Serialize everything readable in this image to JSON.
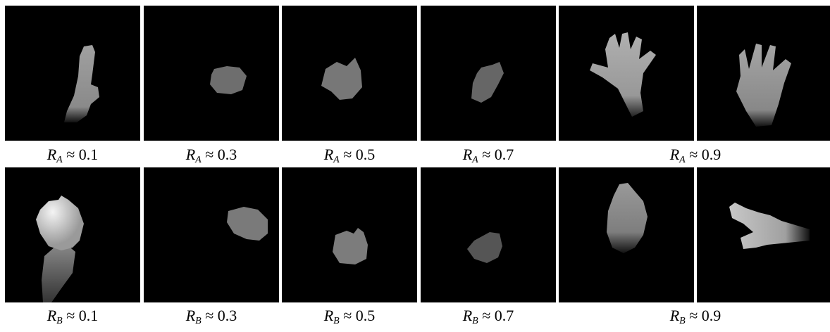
{
  "figure": {
    "rows": [
      {
        "key": "A",
        "panels": [
          {
            "id": "a1",
            "shape": "finger-up",
            "brightness": "#9a9a9a"
          },
          {
            "id": "a2",
            "shape": "blob-small",
            "brightness": "#6e6e6e"
          },
          {
            "id": "a3",
            "shape": "blob-medium",
            "brightness": "#777777"
          },
          {
            "id": "a4",
            "shape": "blob-tilted",
            "brightness": "#6a6a6a"
          },
          {
            "id": "a5",
            "shape": "open-hand",
            "brightness": "#a5a5a5"
          },
          {
            "id": "a6",
            "shape": "open-hand-2",
            "brightness": "#959595"
          }
        ],
        "captions": [
          {
            "var": "R",
            "sub": "A",
            "rel": "≈",
            "value": "0.1"
          },
          {
            "var": "R",
            "sub": "A",
            "rel": "≈",
            "value": "0.3"
          },
          {
            "var": "R",
            "sub": "A",
            "rel": "≈",
            "value": "0.5"
          },
          {
            "var": "R",
            "sub": "A",
            "rel": "≈",
            "value": "0.7"
          },
          {
            "var": "R",
            "sub": "A",
            "rel": "≈",
            "value": "0.9"
          }
        ]
      },
      {
        "key": "B",
        "panels": [
          {
            "id": "b1",
            "shape": "bright-fist-arm",
            "brightness": "#d8d8d8"
          },
          {
            "id": "b2",
            "shape": "blob-right",
            "brightness": "#7a7a7a"
          },
          {
            "id": "b3",
            "shape": "blob-low",
            "brightness": "#7c7c7c"
          },
          {
            "id": "b4",
            "shape": "blob-dim",
            "brightness": "#5a5a5a"
          },
          {
            "id": "b5",
            "shape": "leaf",
            "brightness": "#8a8a8a"
          },
          {
            "id": "b6",
            "shape": "pointing",
            "brightness": "#b5b5b5"
          }
        ],
        "captions": [
          {
            "var": "R",
            "sub": "B",
            "rel": "≈",
            "value": "0.1"
          },
          {
            "var": "R",
            "sub": "B",
            "rel": "≈",
            "value": "0.3"
          },
          {
            "var": "R",
            "sub": "B",
            "rel": "≈",
            "value": "0.5"
          },
          {
            "var": "R",
            "sub": "B",
            "rel": "≈",
            "value": "0.7"
          },
          {
            "var": "R",
            "sub": "B",
            "rel": "≈",
            "value": "0.9"
          }
        ]
      }
    ]
  }
}
